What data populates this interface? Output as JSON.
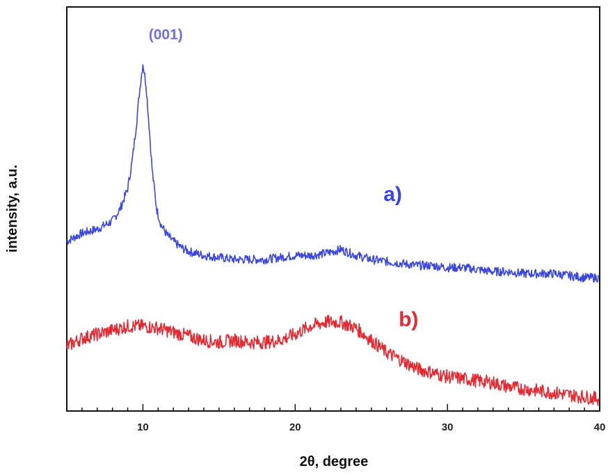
{
  "chart_data": {
    "type": "line",
    "title": "",
    "xlabel": "2θ, degree",
    "ylabel": "intensity, a.u.",
    "xlim": [
      5,
      40
    ],
    "ylim": [
      0,
      100
    ],
    "x_ticks": [
      10,
      20,
      30,
      40
    ],
    "grid": false,
    "legend": "none",
    "annotations": [
      {
        "text": "(001)",
        "x": 11.5,
        "y": 92,
        "color": "#7070e0"
      }
    ],
    "series": [
      {
        "label": "a)",
        "color": "#3a46e0",
        "label_x": 25.8,
        "label_y": 52,
        "x": [
          5,
          6,
          7,
          8,
          8.5,
          9,
          9.3,
          9.6,
          9.8,
          10,
          10.2,
          10.4,
          10.6,
          10.9,
          11.2,
          11.6,
          12,
          12.5,
          13,
          14,
          15,
          16,
          17,
          18,
          19,
          20,
          21,
          22,
          23,
          24,
          25,
          26,
          27,
          28,
          29,
          30,
          31,
          32,
          33,
          34,
          35,
          36,
          37,
          38,
          39,
          40
        ],
        "y": [
          42,
          44,
          45,
          47,
          50,
          55,
          62,
          72,
          80,
          86,
          81,
          71,
          60,
          50,
          46,
          43.5,
          42,
          40.5,
          39.5,
          38.5,
          38,
          37.5,
          37.5,
          37.5,
          38,
          38.5,
          38.5,
          39,
          40,
          38.5,
          37.5,
          37,
          36.5,
          36,
          36,
          35.5,
          35.5,
          35,
          34.5,
          34.5,
          34,
          34,
          34,
          33.5,
          33,
          33
        ]
      },
      {
        "label": "b)",
        "color": "#e82830",
        "label_x": 26.8,
        "label_y": 21,
        "x": [
          5,
          6,
          7,
          8,
          9,
          10,
          11,
          12,
          13,
          14,
          15,
          16,
          17,
          18,
          19,
          20,
          21,
          22,
          23,
          24,
          25,
          26,
          27,
          28,
          29,
          30,
          31,
          32,
          33,
          34,
          35,
          36,
          37,
          38,
          39,
          40
        ],
        "y": [
          16,
          18,
          19,
          20,
          21,
          21,
          20.5,
          19.5,
          18.5,
          17.5,
          17,
          17.5,
          17,
          17,
          17.5,
          19,
          21,
          22,
          22,
          20.5,
          17.5,
          14.5,
          12.5,
          10.5,
          9.5,
          8.5,
          8,
          7.5,
          7,
          6,
          5.5,
          5,
          4.5,
          4,
          3.5,
          3
        ]
      }
    ]
  }
}
